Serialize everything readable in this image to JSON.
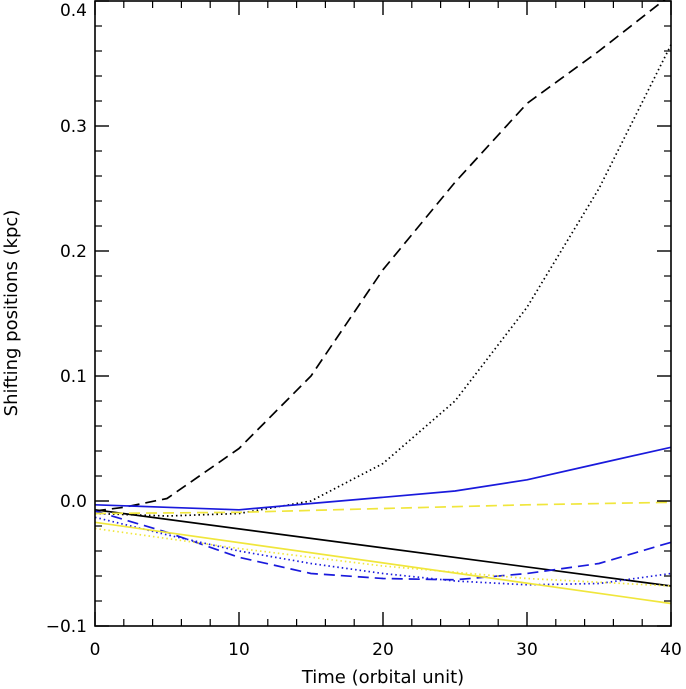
{
  "chart_data": {
    "type": "line",
    "title": "",
    "xlabel": "Time (orbital unit)",
    "ylabel": "Shifting positions (kpc)",
    "xlim": [
      0,
      40
    ],
    "ylim": [
      -0.1,
      0.4
    ],
    "xticks": [
      0,
      10,
      20,
      30,
      40
    ],
    "xtick_labels": [
      "0",
      "10",
      "20",
      "30",
      "40"
    ],
    "yticks": [
      -0.1,
      0.0,
      0.1,
      0.2,
      0.3,
      0.4
    ],
    "ytick_labels": [
      "−0.1",
      "0.0",
      "0.1",
      "0.2",
      "0.3",
      "0.4"
    ],
    "grid": false,
    "legend": "none",
    "series": [
      {
        "color": "#000000",
        "dash": "dashed",
        "x": [
          0,
          2,
          5,
          10,
          15,
          20,
          25,
          30,
          35,
          40
        ],
        "y": [
          -0.008,
          -0.005,
          0.002,
          0.042,
          0.1,
          0.185,
          0.255,
          0.318,
          0.36,
          0.405
        ]
      },
      {
        "color": "#000000",
        "dash": "dotted",
        "x": [
          0,
          5,
          10,
          15,
          20,
          25,
          30,
          35,
          40
        ],
        "y": [
          -0.01,
          -0.012,
          -0.01,
          0.0,
          0.03,
          0.08,
          0.155,
          0.25,
          0.365
        ]
      },
      {
        "color": "#000000",
        "dash": "solid",
        "x": [
          0,
          40
        ],
        "y": [
          -0.007,
          -0.068
        ]
      },
      {
        "color": "#1a1adc",
        "dash": "solid",
        "x": [
          0,
          5,
          10,
          15,
          20,
          25,
          30,
          35,
          40
        ],
        "y": [
          -0.003,
          -0.005,
          -0.007,
          -0.002,
          0.003,
          0.008,
          0.017,
          0.03,
          0.043
        ]
      },
      {
        "color": "#1a1adc",
        "dash": "dashed",
        "x": [
          0,
          5,
          10,
          15,
          20,
          25,
          30,
          35,
          40
        ],
        "y": [
          -0.008,
          -0.025,
          -0.045,
          -0.058,
          -0.062,
          -0.063,
          -0.058,
          -0.05,
          -0.033
        ]
      },
      {
        "color": "#1a1adc",
        "dash": "dotted",
        "x": [
          0,
          5,
          10,
          15,
          20,
          25,
          30,
          35,
          40
        ],
        "y": [
          -0.013,
          -0.027,
          -0.04,
          -0.05,
          -0.058,
          -0.064,
          -0.067,
          -0.066,
          -0.058
        ]
      },
      {
        "color": "#f0e63c",
        "dash": "solid",
        "x": [
          0,
          40
        ],
        "y": [
          -0.017,
          -0.082
        ]
      },
      {
        "color": "#f0e63c",
        "dash": "dashed",
        "x": [
          0,
          10,
          20,
          30,
          40
        ],
        "y": [
          -0.01,
          -0.009,
          -0.006,
          -0.003,
          -0.001
        ]
      },
      {
        "color": "#f0e63c",
        "dash": "dotted",
        "x": [
          0,
          10,
          20,
          30,
          40
        ],
        "y": [
          -0.022,
          -0.038,
          -0.052,
          -0.062,
          -0.068
        ]
      }
    ]
  }
}
